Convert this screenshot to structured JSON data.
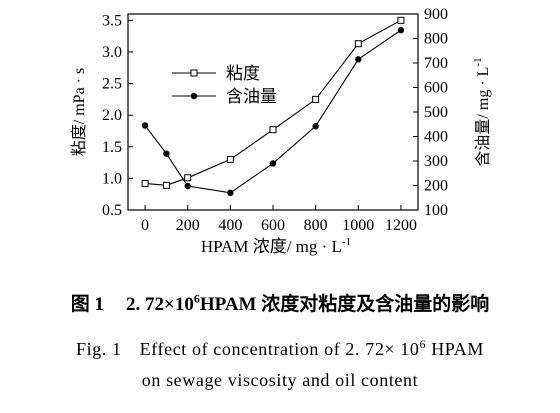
{
  "chart_data": {
    "type": "line",
    "x": [
      0,
      100,
      200,
      400,
      600,
      800,
      1000,
      1200
    ],
    "xticks": [
      "0",
      "200",
      "400",
      "600",
      "800",
      "1000",
      "1200"
    ],
    "xlim": [
      -80,
      1280
    ],
    "xlabel_main": "HPAM 浓度/ mg · L",
    "xlabel_sup": "-1",
    "ylabel_left": "粘度/ mPa · s",
    "ylabel_right": "含油量/ mg · L",
    "ylabel_right_sup": "-1",
    "ylim_left": [
      0.5,
      3.6
    ],
    "yticks_left": [
      "0.5",
      "1.0",
      "1.5",
      "2.0",
      "2.5",
      "3.0",
      "3.5"
    ],
    "ylim_right": [
      100,
      900
    ],
    "yticks_right": [
      "100",
      "200",
      "300",
      "400",
      "500",
      "600",
      "700",
      "800",
      "900"
    ],
    "legend_position": "upper-left",
    "grid": false,
    "series": [
      {
        "name": "粘度",
        "axis": "left",
        "marker": "open-square",
        "values": [
          0.92,
          0.89,
          1.01,
          1.3,
          1.77,
          2.25,
          3.13,
          3.5
        ]
      },
      {
        "name": "含油量",
        "axis": "right",
        "marker": "filled-circle",
        "values": [
          445,
          330,
          198,
          170,
          290,
          442,
          715,
          834
        ]
      }
    ]
  },
  "caption": {
    "cn_fig": "图 1",
    "cn_num": "2. 72×10",
    "cn_sup": "6",
    "cn_text": "HPAM 浓度对粘度及含油量的影响",
    "en_fig": "Fig. 1",
    "en_text": "Effect of concentration of 2. 72× 10",
    "en_sup": "6",
    "en_tail": "HPAM",
    "en_line2": "on sewage viscosity and oil content"
  }
}
